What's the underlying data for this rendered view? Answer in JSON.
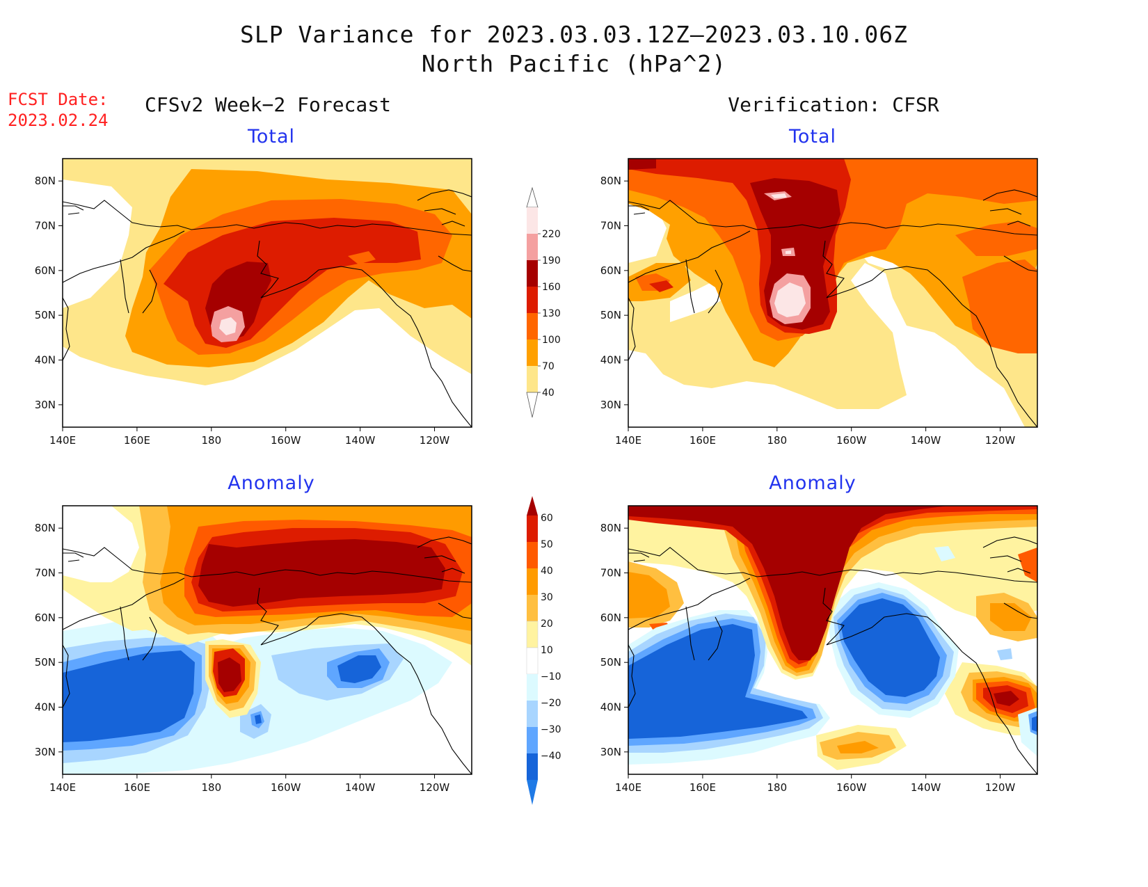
{
  "header": {
    "title_line1": "SLP Variance for 2023.03.03.12Z–2023.03.10.06Z",
    "title_line2": "North Pacific (hPa^2)"
  },
  "forecast_date": {
    "label": "FCST Date:",
    "value": "2023.02.24"
  },
  "columns": {
    "left_title": "CFSv2 Week−2 Forecast",
    "right_title": "Verification: CFSR"
  },
  "panels": [
    {
      "id": "fcst-total",
      "title": "Total"
    },
    {
      "id": "verif-total",
      "title": "Total"
    },
    {
      "id": "fcst-anomaly",
      "title": "Anomaly"
    },
    {
      "id": "verif-anomaly",
      "title": "Anomaly"
    }
  ],
  "axes": {
    "x_ticks": [
      "140E",
      "160E",
      "180",
      "160W",
      "140W",
      "120W"
    ],
    "y_ticks": [
      "80N",
      "70N",
      "60N",
      "50N",
      "40N",
      "30N"
    ],
    "lon_range": [
      140,
      250
    ],
    "lat_range": [
      25,
      85
    ]
  },
  "colorbars": {
    "total": {
      "levels": [
        "220",
        "190",
        "160",
        "130",
        "100",
        "70",
        "40"
      ],
      "colors": [
        "#fce6e6",
        "#f4a0a0",
        "#a50000",
        "#dd1c00",
        "#ff6600",
        "#ffa000",
        "#fee68a"
      ]
    },
    "anomaly": {
      "levels": [
        "60",
        "50",
        "40",
        "30",
        "20",
        "10",
        "−10",
        "−20",
        "−30",
        "−40"
      ],
      "colors": [
        "#a50000",
        "#dd1c00",
        "#ff5a00",
        "#ff9b00",
        "#ffbf40",
        "#fff3a0",
        "#ffffff",
        "#dcfaff",
        "#a8d5ff",
        "#5fa6ff",
        "#1664d9",
        "#1f7ae6"
      ]
    }
  }
}
